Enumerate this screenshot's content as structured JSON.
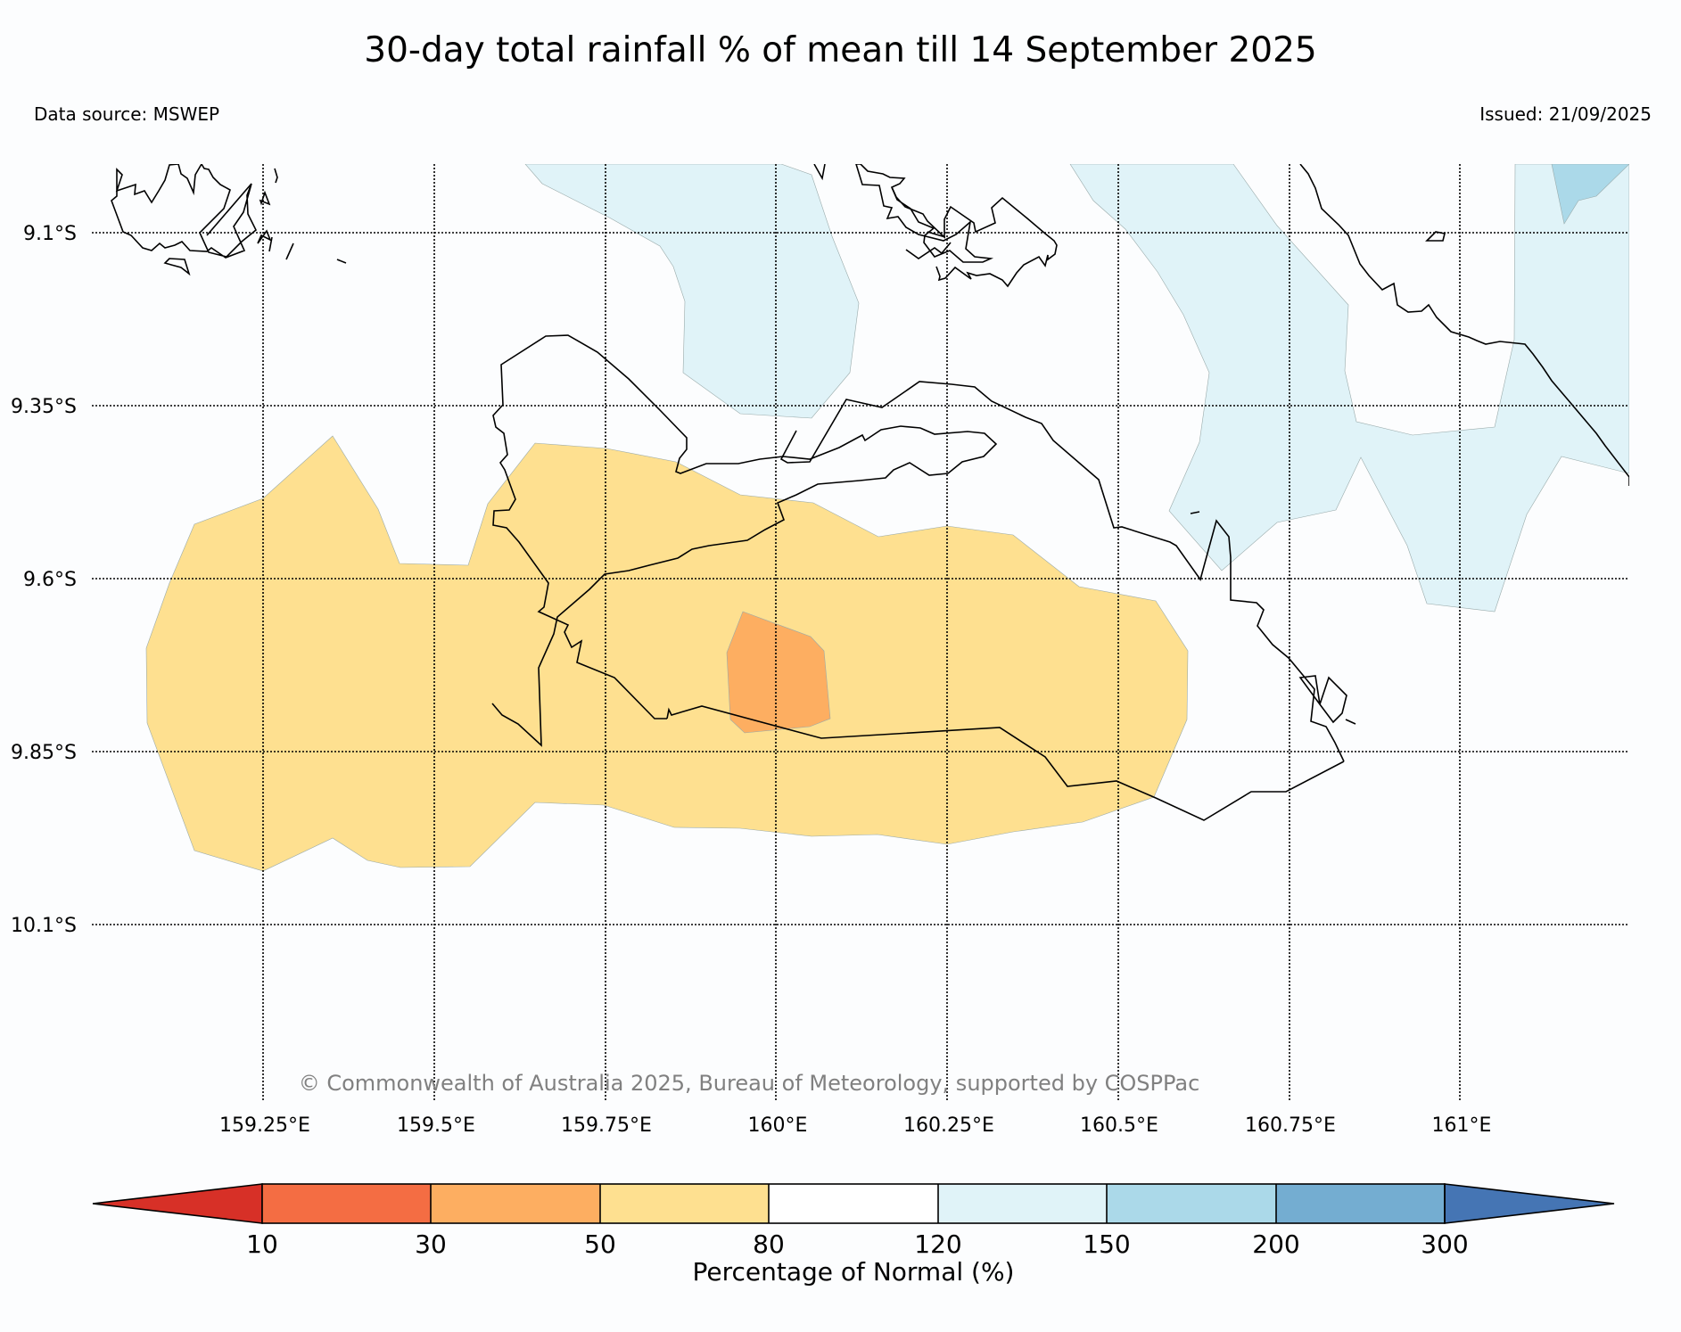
{
  "title": "30-day total rainfall % of mean till 14 September 2025",
  "source": "Data source: MSWEP",
  "issued": "Issued: 21/09/2025",
  "copyright": "© Commonwealth of Australia 2025, Bureau of Meteorology, supported by COSPPac",
  "map": {
    "lat_labels": [
      "9.1°S",
      "9.35°S",
      "9.6°S",
      "9.85°S",
      "10.1°S"
    ],
    "lon_labels": [
      "159.25°E",
      "159.5°E",
      "159.75°E",
      "160°E",
      "160.25°E",
      "160.5°E",
      "160.75°E",
      "161°E"
    ]
  },
  "legend": {
    "label": "Percentage of Normal (%)",
    "ticks": [
      "10",
      "30",
      "50",
      "80",
      "120",
      "150",
      "200",
      "300"
    ],
    "colors": [
      "#d73027",
      "#f46d43",
      "#fdae61",
      "#fee090",
      "#ffffff",
      "#e0f3f8",
      "#abd9e9",
      "#74add1",
      "#4575b4"
    ]
  },
  "regions": [
    {
      "name": "50-80% rainfall zone",
      "color": "#fee090"
    },
    {
      "name": "30-50% rainfall zone",
      "color": "#fdae61"
    },
    {
      "name": "120-150% rainfall zone",
      "color": "#e0f3f8"
    },
    {
      "name": "150-200% rainfall zone",
      "color": "#abd9e9"
    }
  ]
}
